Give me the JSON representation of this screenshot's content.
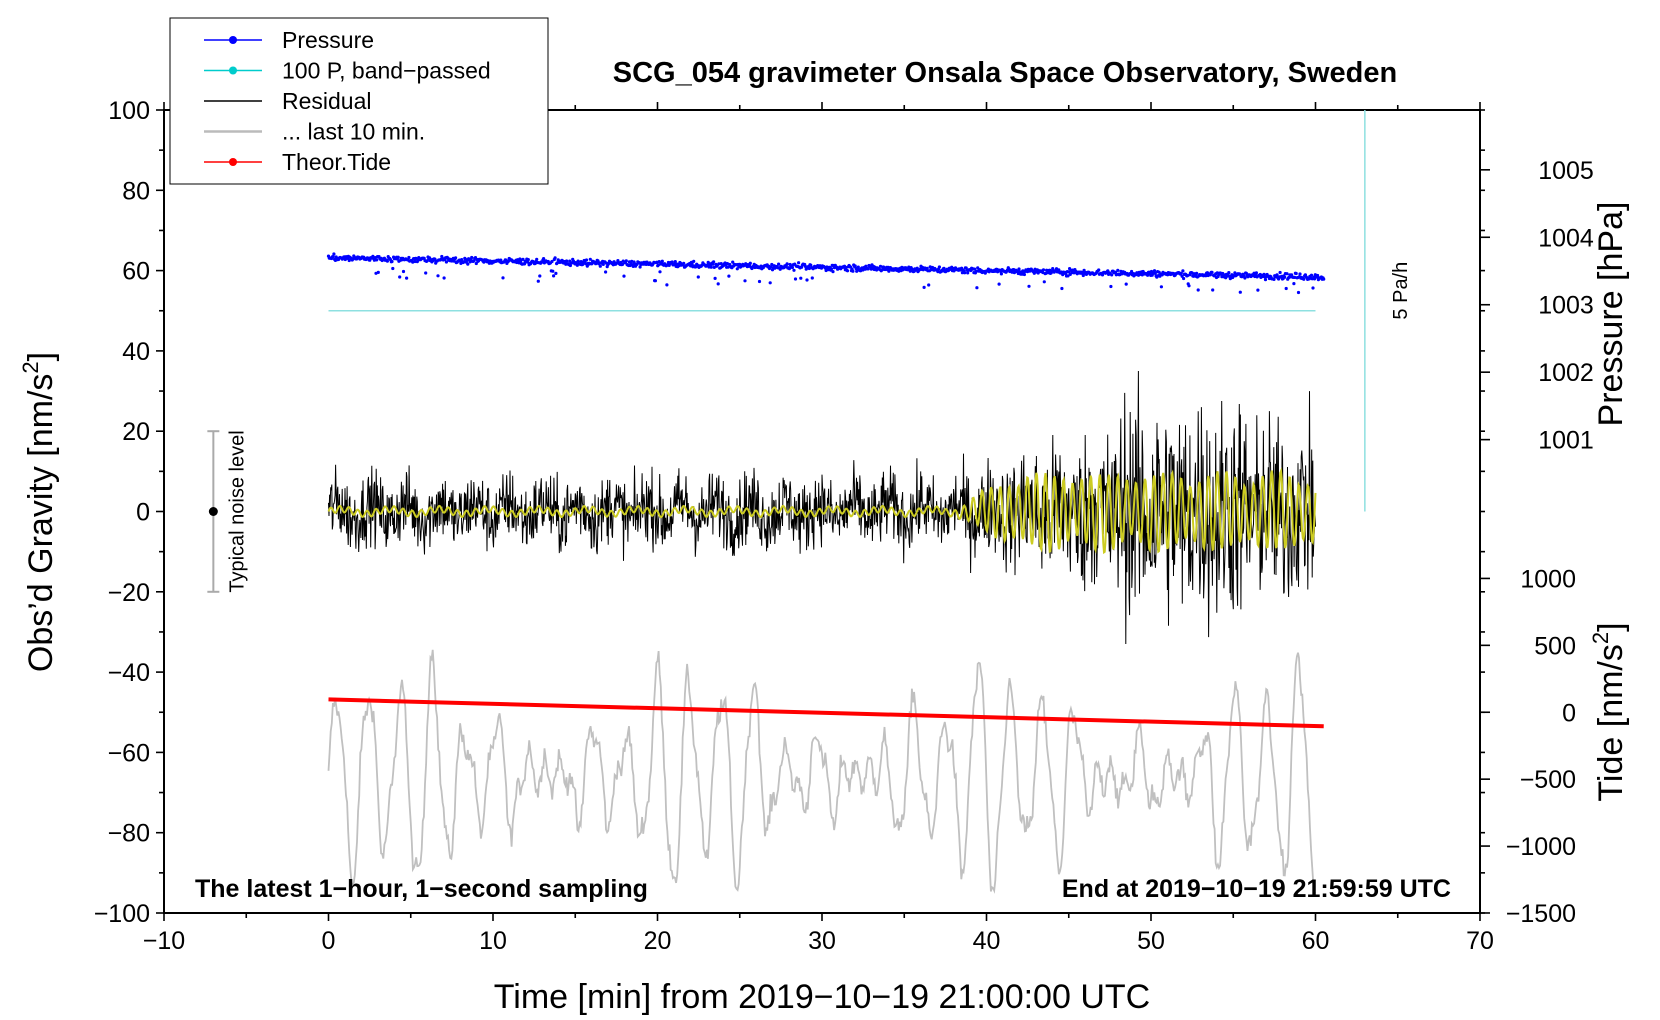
{
  "chart_data": {
    "type": "line",
    "title": "SCG_054 gravimeter Onsala Space Observatory, Sweden",
    "xlabel": "Time [min] from 2019−10−19 21:00:00 UTC",
    "ylabel_left": "Obs’d Gravity [nm/s",
    "ylabel_left_sup": "2",
    "ylabel_left_end": "]",
    "ylabel_pressure": "Pressure [hPa]",
    "ylabel_tide": "Tide [nm/s",
    "ylabel_tide_sup": "2",
    "ylabel_tide_end": "]",
    "xlim": [
      -10,
      70
    ],
    "ylim": [
      -100,
      100
    ],
    "x_ticks": [
      -10,
      0,
      10,
      20,
      30,
      40,
      50,
      60,
      70
    ],
    "x_tick_labels": [
      "−10",
      "0",
      "10",
      "20",
      "30",
      "40",
      "50",
      "60",
      "70"
    ],
    "y_ticks": [
      -100,
      -80,
      -60,
      -40,
      -20,
      0,
      20,
      40,
      60,
      80,
      100
    ],
    "y_tick_labels": [
      "−100",
      "−80",
      "−60",
      "−40",
      "−20",
      "0",
      "20",
      "40",
      "60",
      "80",
      "100"
    ],
    "pressure_axis": {
      "ticks": [
        1001,
        1002,
        1003,
        1004,
        1005
      ],
      "tick_labels": [
        "1001",
        "1002",
        "1003",
        "1004",
        "1005"
      ],
      "left_units_per_hPa": 16.8,
      "left_offset_at_1001": 17.9
    },
    "tide_axis": {
      "ticks": [
        -1500,
        -1000,
        -500,
        0,
        500,
        1000
      ],
      "tick_labels": [
        "−1500",
        "−1000",
        "−500",
        "0",
        "500",
        "1000"
      ],
      "left_units_per_unit": 0.03333,
      "left_offset_at_0": -50
    },
    "left_text_annotation": "The latest 1−hour, 1−second sampling",
    "right_text_annotation": "End at 2019−10−19 21:59:59 UTC",
    "noise_bar": {
      "label": "Typical noise level",
      "x": -7,
      "center": 0,
      "low": -20,
      "high": 20
    },
    "scale_bar": {
      "label": "5 Pa/h",
      "x": 63,
      "from": 0,
      "to": 100
    },
    "legend": [
      {
        "label": "Pressure",
        "color": "#0000ff",
        "marker": "dot"
      },
      {
        "label": "100 P, band−passed",
        "color": "#00cccc",
        "marker": "dot"
      },
      {
        "label": "Residual",
        "color": "#000000",
        "marker": "none"
      },
      {
        "label": "... last 10 min.",
        "color": "#bbbbbb",
        "marker": "none"
      },
      {
        "label": "Theor.Tide",
        "color": "#ff0000",
        "marker": "dot"
      }
    ],
    "series": [
      {
        "name": "Pressure",
        "color": "#0000ff",
        "x_range": [
          0,
          60.5
        ],
        "y_start": 63.2,
        "y_end": 58.4,
        "description_unit": "left-axis units"
      },
      {
        "name": "100 P, band−passed",
        "color": "#8ee0e0",
        "x_range": [
          0,
          60
        ],
        "y_start": 50,
        "y_end": 50
      },
      {
        "name": "Residual",
        "color": "#000000",
        "x_range": [
          0,
          60
        ],
        "amplitude_early": 7,
        "amplitude_late": 18,
        "max": 35,
        "min": -33
      },
      {
        "name": "Residual (smoothed)",
        "color": "#cccc22",
        "x_range": [
          0,
          60
        ]
      },
      {
        "name": "... last 10 min.",
        "color": "#c0c0c0",
        "x_range": [
          0,
          60
        ],
        "mean": -66,
        "max": -27,
        "min": -95
      },
      {
        "name": "Theor.Tide",
        "color": "#ff0000",
        "x_range": [
          0,
          60.5
        ],
        "y_start": -46.8,
        "y_end": -53.5
      }
    ]
  }
}
